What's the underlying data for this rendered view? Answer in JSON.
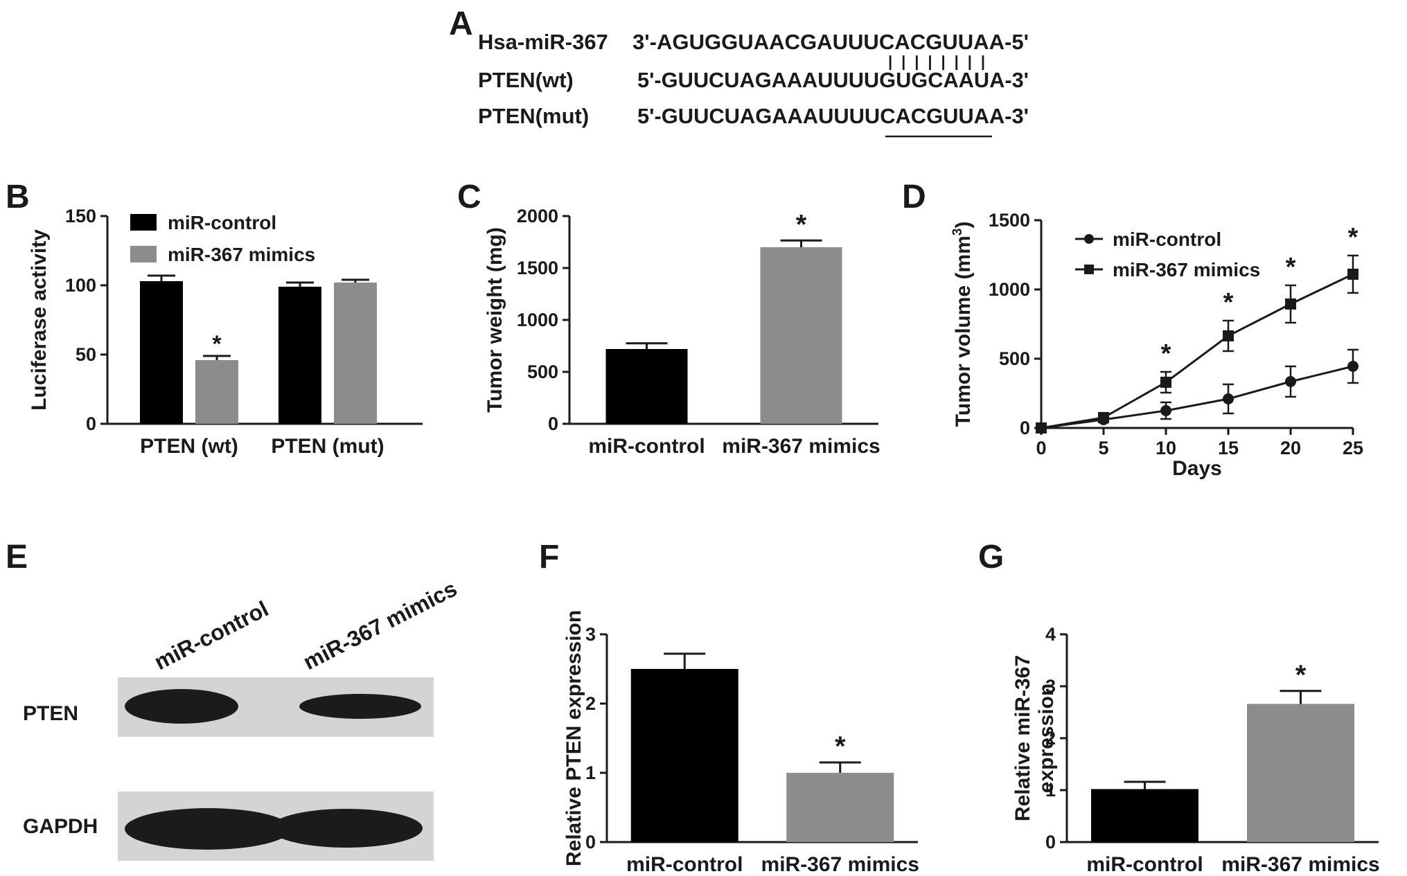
{
  "panels": {
    "a": {
      "letter": "A"
    },
    "b": {
      "letter": "B"
    },
    "c": {
      "letter": "C"
    },
    "d": {
      "letter": "D"
    },
    "e": {
      "letter": "E"
    },
    "f": {
      "letter": "F"
    },
    "g": {
      "letter": "G"
    }
  },
  "sequences": {
    "rows": [
      {
        "name": "Hsa-miR-367",
        "seq": "3'-AGUGGUAACGAUUUCACGUUAA-5'"
      },
      {
        "name": "PTEN(wt)",
        "seq": "5'-GUUCUAGAAAUUUUGUGCAAUA-3'"
      },
      {
        "name": "PTEN(mut)",
        "seq": "5'-GUUCUAGAAAUUUUCACGUUAA-3'"
      }
    ],
    "pair_marks": "| | | | | | | |"
  },
  "western_blot": {
    "lane_labels": [
      "miR-control",
      "miR-367 mimics"
    ],
    "bands": [
      "PTEN",
      "GAPDH"
    ],
    "band_colors": {
      "background": "#d4d4d4",
      "band": "#1b1b1b"
    }
  },
  "chart_data": [
    {
      "id": "B",
      "type": "bar",
      "categories": [
        "PTEN (wt)",
        "PTEN  (mut)"
      ],
      "series": [
        {
          "name": "miR-control",
          "color": "#000000",
          "values": [
            103,
            99
          ],
          "errors": [
            4,
            3
          ],
          "significant": [
            false,
            false
          ]
        },
        {
          "name": "miR-367 mimics",
          "color": "#8c8c8c",
          "values": [
            46,
            102
          ],
          "errors": [
            3,
            2
          ],
          "significant": [
            true,
            false
          ]
        }
      ],
      "ylabel": "Luciferase activity",
      "ylim": [
        0,
        150
      ],
      "yticks": [
        0,
        50,
        100,
        150
      ],
      "legend": "top-left",
      "significance_mark": "*"
    },
    {
      "id": "C",
      "type": "bar",
      "categories": [
        "miR-control",
        "miR-367 mimics"
      ],
      "values": [
        720,
        1700
      ],
      "errors": [
        55,
        65
      ],
      "colors": [
        "#000000",
        "#8c8c8c"
      ],
      "significant": [
        false,
        true
      ],
      "ylabel": "Tumor weight (mg)",
      "ylim": [
        0,
        2000
      ],
      "yticks": [
        0,
        500,
        1000,
        1500,
        2000
      ],
      "significance_mark": "*"
    },
    {
      "id": "D",
      "type": "line",
      "x": [
        0,
        5,
        10,
        15,
        20,
        25
      ],
      "series": [
        {
          "name": "miR-control",
          "marker": "circle",
          "values": [
            0,
            60,
            125,
            210,
            335,
            445
          ],
          "errors": [
            0,
            20,
            60,
            105,
            110,
            120
          ]
        },
        {
          "name": "miR-367 mimics",
          "marker": "square",
          "values": [
            0,
            75,
            330,
            665,
            895,
            1110
          ],
          "errors": [
            0,
            25,
            75,
            110,
            135,
            135
          ]
        }
      ],
      "significant_x": [
        10,
        15,
        20,
        25
      ],
      "xlabel": "Days",
      "ylabel": "Tumor volume (mm",
      "ylabel_sup": "3",
      "ylabel_close": ")",
      "xlim": [
        0,
        25
      ],
      "xticks": [
        0,
        5,
        10,
        15,
        20,
        25
      ],
      "ylim": [
        0,
        1500
      ],
      "yticks": [
        0,
        500,
        1000,
        1500
      ],
      "legend": "top-left",
      "significance_mark": "*"
    },
    {
      "id": "F",
      "type": "bar",
      "categories": [
        "miR-control",
        "miR-367 mimics"
      ],
      "values": [
        2.5,
        1.0
      ],
      "errors": [
        0.22,
        0.15
      ],
      "colors": [
        "#000000",
        "#8c8c8c"
      ],
      "significant": [
        false,
        true
      ],
      "ylabel": "Relative PTEN expression",
      "ylim": [
        0,
        3
      ],
      "yticks": [
        0,
        1,
        2,
        3
      ],
      "significance_mark": "*"
    },
    {
      "id": "G",
      "type": "bar",
      "categories": [
        "miR-control",
        "miR-367 mimics"
      ],
      "values": [
        1.02,
        2.66
      ],
      "errors": [
        0.14,
        0.25
      ],
      "colors": [
        "#000000",
        "#8c8c8c"
      ],
      "significant": [
        false,
        true
      ],
      "ylabel_lines": [
        "Relative miR-367",
        "expression"
      ],
      "ylim": [
        0,
        4
      ],
      "yticks": [
        0,
        1,
        2,
        3,
        4
      ],
      "significance_mark": "*"
    }
  ]
}
